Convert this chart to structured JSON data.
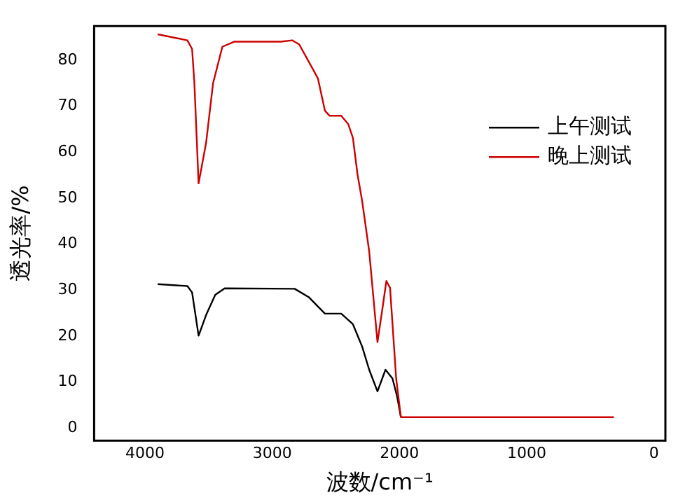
{
  "chart_data": {
    "type": "line",
    "xlabel": "波数/cm⁻¹",
    "ylabel": "透光率/%",
    "xlim": [
      4400,
      -90
    ],
    "ylim": [
      -2.7,
      87.4
    ],
    "xticks": [
      4000,
      3000,
      2000,
      1000,
      0
    ],
    "yticks": [
      0,
      10,
      20,
      30,
      40,
      50,
      60,
      70,
      80
    ],
    "grid": false,
    "legend": "top right",
    "marker": "none",
    "line_style": "solid",
    "series": [
      {
        "name": "上午测试",
        "color": "#000000",
        "x": [
          3900,
          3667,
          3630,
          3579,
          3520,
          3448,
          3374,
          2824,
          2714,
          2586,
          2458,
          2366,
          2293,
          2238,
          2173,
          2110,
          2055,
          2018,
          1989
        ],
        "values": [
          31.3,
          30.9,
          29.5,
          20.1,
          24.6,
          29,
          30.4,
          30.3,
          28.5,
          24.9,
          24.9,
          22.6,
          17.7,
          12.7,
          8,
          12.7,
          10.8,
          6.8,
          2.4
        ]
      },
      {
        "name": "晚上测试",
        "color": "#cc0000",
        "x": [
          3900,
          3667,
          3630,
          3612,
          3579,
          3520,
          3465,
          3392,
          3300,
          2934,
          2843,
          2788,
          2678,
          2641,
          2586,
          2549,
          2458,
          2403,
          2366,
          2330,
          2293,
          2238,
          2173,
          2136,
          2103,
          2074,
          2026,
          1989,
          315
        ],
        "values": [
          85.6,
          84.3,
          82.4,
          75,
          53.2,
          62,
          75,
          82.9,
          84,
          84,
          84.3,
          83.4,
          77.9,
          76,
          69,
          67.9,
          67.9,
          66.1,
          63.1,
          55.2,
          49.3,
          38.4,
          18.7,
          25.6,
          32,
          30.5,
          10.8,
          2.4,
          2.4
        ]
      }
    ]
  }
}
